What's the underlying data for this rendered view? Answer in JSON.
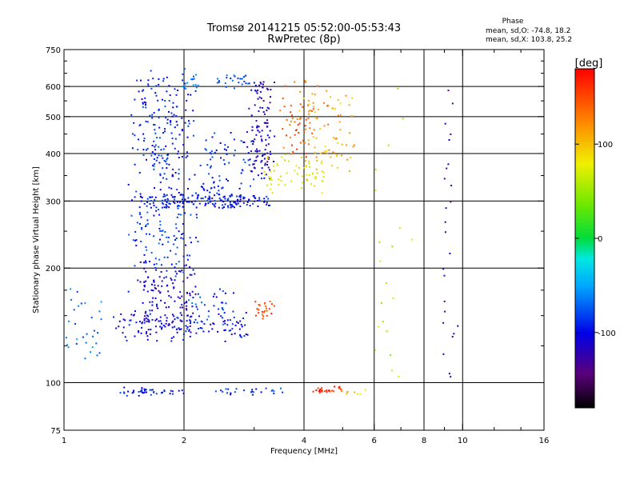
{
  "chart_data": {
    "type": "scatter",
    "title": "Tromsø 20141215 05:52:00-05:53:43",
    "subtitle": "RwPretec (8p)",
    "xlabel": "Frequency [MHz]",
    "ylabel": "Stationary phase Virtual Height [km]",
    "x_scale": "log",
    "y_scale": "log",
    "xlim": [
      1,
      16
    ],
    "ylim": [
      75,
      750
    ],
    "x_ticks": [
      1,
      2,
      4,
      6,
      8,
      10,
      16
    ],
    "x_tick_labels": [
      "1",
      "2",
      "4",
      "6",
      "8",
      "10",
      "16"
    ],
    "x_minor_ticks": [
      3,
      5,
      7,
      9,
      12,
      14
    ],
    "x_grid_lines": [
      2,
      4,
      6,
      8,
      10
    ],
    "y_ticks": [
      75,
      100,
      200,
      300,
      400,
      500,
      600,
      750
    ],
    "y_tick_labels": [
      "75",
      "100",
      "200",
      "300",
      "400",
      "500",
      "600",
      "750"
    ],
    "y_minor_ticks": [
      125,
      150,
      175,
      250,
      350,
      450,
      550,
      650,
      700
    ],
    "y_grid_lines": [
      100,
      200,
      300,
      400,
      500,
      600
    ],
    "grid": true,
    "phase_info": {
      "heading": "Phase",
      "line_o": "mean, sd,O: -74.8, 18.2",
      "line_x": "mean, sd,X: 103.8, 25.2"
    },
    "colorbar": {
      "label": "[deg]",
      "ticks": [
        100,
        0,
        -100
      ],
      "tick_labels": [
        "100",
        "0",
        "-100"
      ],
      "range": [
        -180,
        180
      ],
      "colormap": "rainbow: black(-180) → purple → blue → cyan → green(0) → yellow → orange → red(180)"
    },
    "series": [
      {
        "traces": [
          {
            "f0": 1.55,
            "f1": 3.2,
            "h0": 300,
            "h1": 300,
            "phase": -95,
            "n": 150,
            "spread": 0.035
          },
          {
            "f0": 1.55,
            "f1": 2.0,
            "h0": 300,
            "h1": 620,
            "phase": -90,
            "n": 200,
            "spread": 0.06
          },
          {
            "f0": 1.5,
            "f1": 2.1,
            "h0": 200,
            "h1": 290,
            "phase": -85,
            "n": 100,
            "spread": 0.05
          },
          {
            "f0": 1.35,
            "f1": 2.9,
            "h0": 130,
            "h1": 150,
            "phase": -100,
            "n": 120,
            "spread": 0.03
          },
          {
            "f0": 1.5,
            "f1": 2.1,
            "h0": 140,
            "h1": 200,
            "phase": -110,
            "n": 150,
            "spread": 0.05
          },
          {
            "f0": 2.2,
            "f1": 3.0,
            "h0": 300,
            "h1": 440,
            "phase": -90,
            "n": 90,
            "spread": 0.05
          },
          {
            "f0": 3.0,
            "f1": 3.25,
            "h0": 350,
            "h1": 620,
            "phase": -115,
            "n": 110,
            "spread": 0.04
          },
          {
            "f0": 2.1,
            "f1": 2.6,
            "h0": 150,
            "h1": 175,
            "phase": -80,
            "n": 30,
            "spread": 0.05
          },
          {
            "f0": 1.0,
            "f1": 1.2,
            "h0": 115,
            "h1": 175,
            "phase": -65,
            "n": 30,
            "spread": 0.04
          },
          {
            "f0": 2.4,
            "f1": 2.9,
            "h0": 600,
            "h1": 650,
            "phase": -75,
            "n": 25,
            "spread": 0.02
          },
          {
            "f0": 2.0,
            "f1": 2.2,
            "h0": 590,
            "h1": 650,
            "phase": -70,
            "n": 20,
            "spread": 0.03
          },
          {
            "f0": 3.2,
            "f1": 4.5,
            "h0": 320,
            "h1": 390,
            "phase": 80,
            "n": 60,
            "spread": 0.035
          },
          {
            "f0": 3.6,
            "f1": 4.5,
            "h0": 400,
            "h1": 620,
            "phase": 140,
            "n": 60,
            "spread": 0.05
          },
          {
            "f0": 4.0,
            "f1": 5.2,
            "h0": 370,
            "h1": 560,
            "phase": 105,
            "n": 70,
            "spread": 0.05
          },
          {
            "f0": 3.05,
            "f1": 3.3,
            "h0": 150,
            "h1": 160,
            "phase": 150,
            "n": 25,
            "spread": 0.03
          },
          {
            "f0": 1.4,
            "f1": 2.0,
            "h0": 93,
            "h1": 96,
            "phase": -95,
            "n": 40,
            "spread": 0.012
          },
          {
            "f0": 2.4,
            "f1": 3.5,
            "h0": 93,
            "h1": 97,
            "phase": -85,
            "n": 25,
            "spread": 0.012
          },
          {
            "f0": 4.2,
            "f1": 5.0,
            "h0": 95,
            "h1": 97,
            "phase": 170,
            "n": 25,
            "spread": 0.012
          },
          {
            "f0": 5.0,
            "f1": 5.7,
            "h0": 93,
            "h1": 95,
            "phase": 100,
            "n": 10,
            "spread": 0.01
          },
          {
            "f0": 9.2,
            "f1": 9.4,
            "h0": 100,
            "h1": 640,
            "phase": -120,
            "n": 25,
            "spread": 0.04
          },
          {
            "f0": 6.2,
            "f1": 7.0,
            "h0": 110,
            "h1": 650,
            "phase": 60,
            "n": 20,
            "spread": 0.08
          }
        ]
      }
    ]
  }
}
